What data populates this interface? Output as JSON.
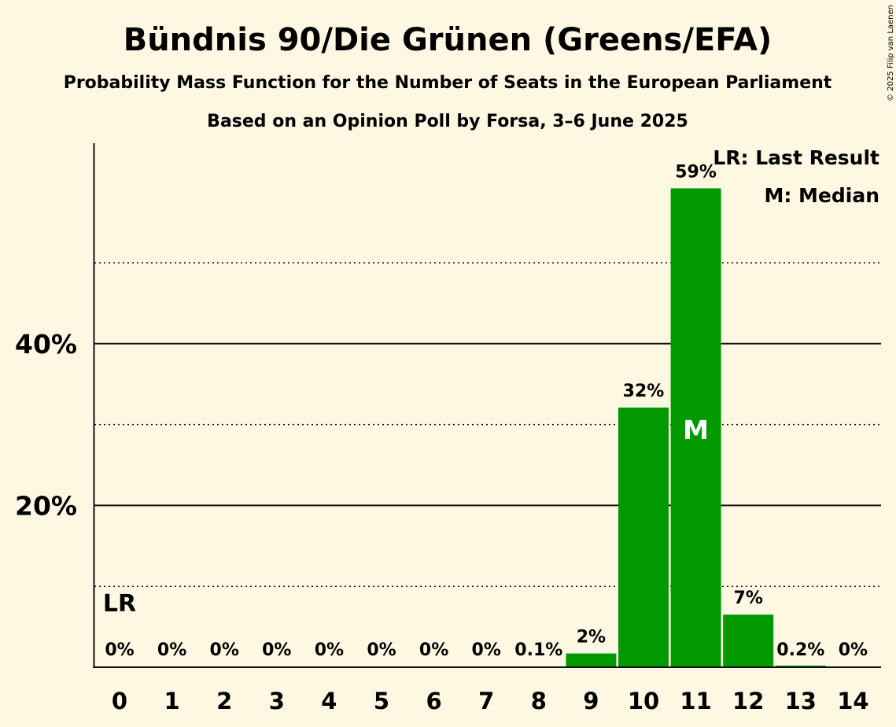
{
  "chart_data": {
    "type": "bar",
    "title": "Bündnis 90/Die Grünen (Greens/EFA)",
    "subtitle": "Probability Mass Function for the Number of Seats in the European Parliament",
    "subtitle2": "Based on an Opinion Poll by Forsa, 3–6 June 2025",
    "categories": [
      "0",
      "1",
      "2",
      "3",
      "4",
      "5",
      "6",
      "7",
      "8",
      "9",
      "10",
      "11",
      "12",
      "13",
      "14"
    ],
    "values": [
      0,
      0,
      0,
      0,
      0,
      0,
      0,
      0,
      0.1,
      1.7,
      32.1,
      59.2,
      6.5,
      0.2,
      0
    ],
    "value_labels": [
      "0%",
      "0%",
      "0%",
      "0%",
      "0%",
      "0%",
      "0%",
      "0%",
      "0.1%",
      "2%",
      "32%",
      "59%",
      "7%",
      "0.2%",
      "0%"
    ],
    "ylim": [
      0,
      65
    ],
    "yticks_major": [
      20,
      40
    ],
    "ytick_labels": [
      "20%",
      "40%"
    ],
    "yticks_minor": [
      10,
      30,
      50
    ],
    "bar_color": "#009900",
    "last_result_index": 0,
    "last_result_label": "LR",
    "median_index": 11,
    "median_label": "M",
    "legend": [
      "LR: Last Result",
      "M: Median"
    ],
    "legend_position": "top-right",
    "xlabel": "",
    "ylabel": ""
  },
  "copyright": "© 2025 Filip van Laenen"
}
